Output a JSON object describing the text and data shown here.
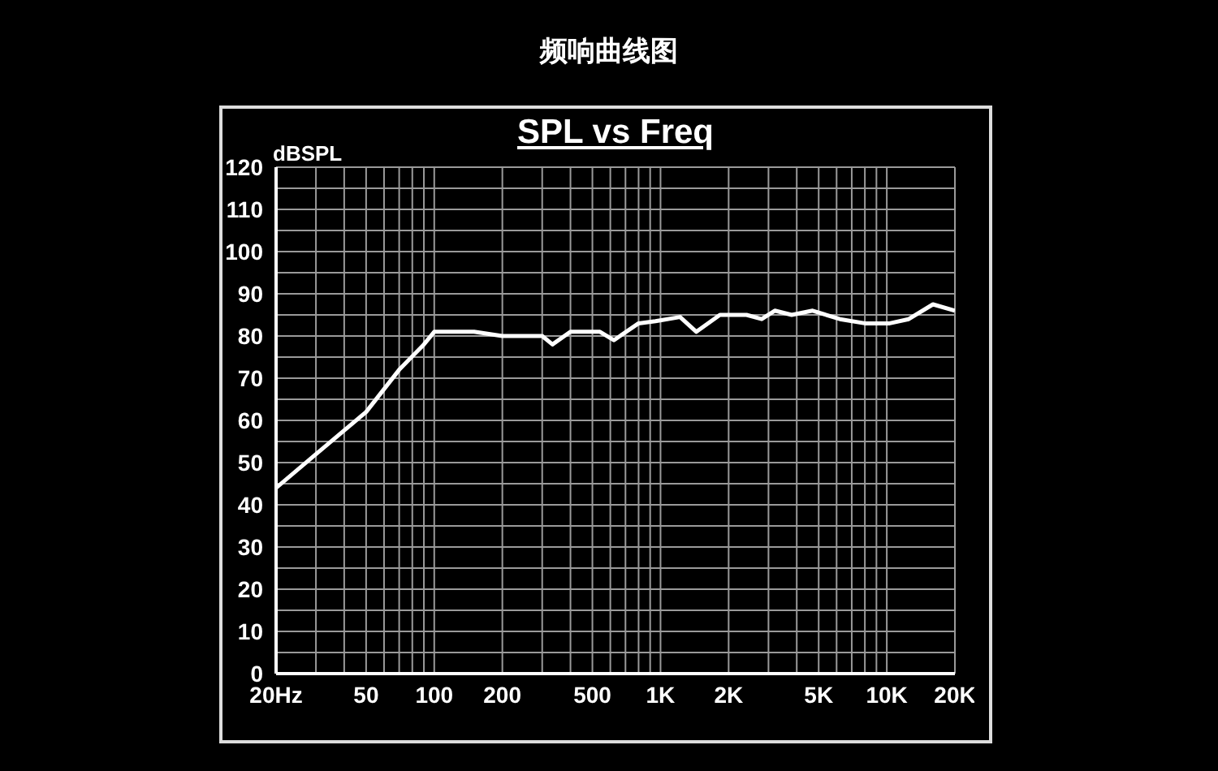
{
  "chart_data": {
    "type": "line",
    "title": "频响曲线图",
    "subtitle": "SPL vs Freq",
    "ylabel": "dBSPL",
    "x": [
      20,
      30,
      50,
      70,
      90,
      100,
      150,
      200,
      300,
      333,
      400,
      460,
      540,
      622,
      800,
      950,
      1220,
      1440,
      1830,
      2400,
      2800,
      3200,
      3800,
      4700,
      6200,
      8000,
      10300,
      12500,
      16000,
      20000
    ],
    "series": [
      {
        "color": "#ffffff",
        "values": [
          44,
          52,
          62,
          72,
          78,
          81,
          81,
          80,
          80,
          78,
          81,
          81,
          81,
          79,
          83,
          83.5,
          84.5,
          81,
          85,
          85,
          84,
          86,
          85,
          86,
          84,
          83,
          83,
          84,
          87.5,
          86
        ]
      }
    ],
    "log": "x",
    "xlim": [
      20,
      20000
    ],
    "xticks": [
      {
        "value": 20,
        "label": "20Hz"
      },
      {
        "value": 30,
        "label": null
      },
      {
        "value": 40,
        "label": null
      },
      50,
      {
        "value": 60,
        "label": null
      },
      {
        "value": 70,
        "label": null
      },
      {
        "value": 80,
        "label": null
      },
      {
        "value": 90,
        "label": null
      },
      100,
      200,
      {
        "value": 300,
        "label": null
      },
      {
        "value": 400,
        "label": null
      },
      500,
      {
        "value": 600,
        "label": null
      },
      {
        "value": 700,
        "label": null
      },
      {
        "value": 800,
        "label": null
      },
      {
        "value": 900,
        "label": null
      },
      {
        "value": 1000,
        "label": "1K"
      },
      {
        "value": 2000,
        "label": "2K"
      },
      {
        "value": 3000,
        "label": null
      },
      {
        "value": 4000,
        "label": null
      },
      {
        "value": 5000,
        "label": "5K"
      },
      {
        "value": 6000,
        "label": null
      },
      {
        "value": 7000,
        "label": null
      },
      {
        "value": 8000,
        "label": null
      },
      {
        "value": 9000,
        "label": null
      },
      {
        "value": 10000,
        "label": "10K"
      },
      {
        "value": 20000,
        "label": "20K"
      }
    ],
    "ylim": [
      0,
      120
    ],
    "yticks": [
      0,
      {
        "value": 5,
        "label": null
      },
      10,
      {
        "value": 15,
        "label": null
      },
      20,
      {
        "value": 25,
        "label": null
      },
      30,
      {
        "value": 35,
        "label": null
      },
      40,
      {
        "value": 45,
        "label": null
      },
      50,
      {
        "value": 55,
        "label": null
      },
      60,
      {
        "value": 65,
        "label": null
      },
      70,
      {
        "value": 75,
        "label": null
      },
      80,
      {
        "value": 85,
        "label": null
      },
      90,
      {
        "value": 95,
        "label": null
      },
      100,
      {
        "value": 105,
        "label": null
      },
      110,
      {
        "value": 115,
        "label": null
      },
      120
    ],
    "grid": true,
    "legend": false,
    "marker": "none",
    "line_style": "solid"
  }
}
